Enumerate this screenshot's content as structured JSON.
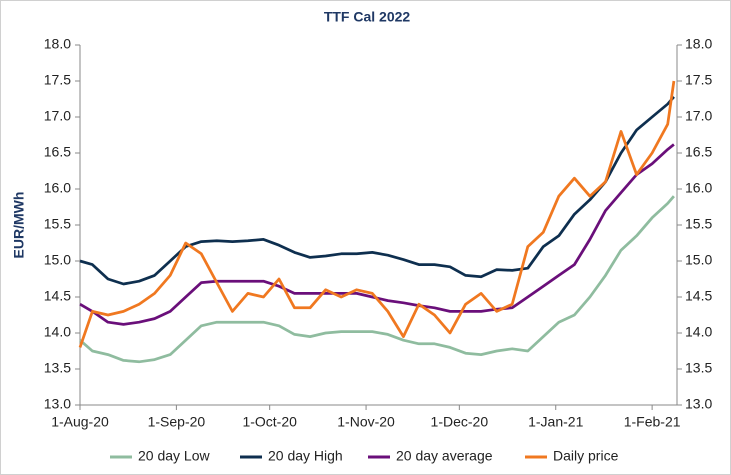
{
  "chart_data": {
    "type": "line",
    "title": "TTF Cal 2022",
    "y_label": "EUR/MWh",
    "x": [
      "2020-08-01",
      "2020-08-05",
      "2020-08-10",
      "2020-08-15",
      "2020-08-20",
      "2020-08-25",
      "2020-08-30",
      "2020-09-04",
      "2020-09-09",
      "2020-09-14",
      "2020-09-19",
      "2020-09-24",
      "2020-09-29",
      "2020-10-04",
      "2020-10-09",
      "2020-10-14",
      "2020-10-19",
      "2020-10-24",
      "2020-10-29",
      "2020-11-03",
      "2020-11-08",
      "2020-11-13",
      "2020-11-18",
      "2020-11-23",
      "2020-11-28",
      "2020-12-03",
      "2020-12-08",
      "2020-12-13",
      "2020-12-18",
      "2020-12-23",
      "2020-12-28",
      "2021-01-02",
      "2021-01-07",
      "2021-01-12",
      "2021-01-17",
      "2021-01-22",
      "2021-01-27",
      "2021-02-01",
      "2021-02-06",
      "2021-02-08"
    ],
    "series": [
      {
        "name": "20 day Low",
        "color": "#8fbc9f",
        "values": [
          13.9,
          13.75,
          13.7,
          13.62,
          13.6,
          13.63,
          13.7,
          13.9,
          14.1,
          14.15,
          14.15,
          14.15,
          14.15,
          14.1,
          13.98,
          13.95,
          14.0,
          14.02,
          14.02,
          14.02,
          13.98,
          13.9,
          13.85,
          13.85,
          13.8,
          13.72,
          13.7,
          13.75,
          13.78,
          13.75,
          13.95,
          14.15,
          14.25,
          14.5,
          14.8,
          15.15,
          15.35,
          15.6,
          15.8,
          15.9
        ]
      },
      {
        "name": "20 day High",
        "color": "#0e2f4f",
        "values": [
          15.0,
          14.95,
          14.75,
          14.68,
          14.72,
          14.8,
          15.0,
          15.2,
          15.27,
          15.28,
          15.27,
          15.28,
          15.3,
          15.22,
          15.12,
          15.05,
          15.07,
          15.1,
          15.1,
          15.12,
          15.08,
          15.02,
          14.95,
          14.95,
          14.92,
          14.8,
          14.78,
          14.88,
          14.87,
          14.9,
          15.2,
          15.35,
          15.65,
          15.85,
          16.1,
          16.5,
          16.82,
          17.0,
          17.18,
          17.28
        ]
      },
      {
        "name": "20 day average",
        "color": "#6a0f7a",
        "values": [
          14.4,
          14.3,
          14.15,
          14.12,
          14.15,
          14.2,
          14.3,
          14.5,
          14.7,
          14.72,
          14.72,
          14.72,
          14.72,
          14.65,
          14.55,
          14.55,
          14.55,
          14.55,
          14.55,
          14.5,
          14.45,
          14.42,
          14.38,
          14.35,
          14.3,
          14.3,
          14.3,
          14.33,
          14.35,
          14.5,
          14.65,
          14.8,
          14.95,
          15.3,
          15.7,
          15.95,
          16.2,
          16.35,
          16.55,
          16.62
        ]
      },
      {
        "name": "Daily price",
        "color": "#f07820",
        "values": [
          13.8,
          14.3,
          14.25,
          14.3,
          14.4,
          14.55,
          14.8,
          15.25,
          15.1,
          14.7,
          14.3,
          14.55,
          14.5,
          14.75,
          14.35,
          14.35,
          14.6,
          14.5,
          14.6,
          14.55,
          14.3,
          13.95,
          14.4,
          14.25,
          14.0,
          14.4,
          14.55,
          14.3,
          14.4,
          15.2,
          15.4,
          15.9,
          16.15,
          15.9,
          16.1,
          16.8,
          16.2,
          16.5,
          16.9,
          17.5
        ]
      }
    ],
    "xlim": [
      "2020-08-01",
      "2021-02-09"
    ],
    "xticks": [
      {
        "value": "2020-08-01",
        "label": "1-Aug-20"
      },
      {
        "value": "2020-09-01",
        "label": "1-Sep-20"
      },
      {
        "value": "2020-10-01",
        "label": "1-Oct-20"
      },
      {
        "value": "2020-11-01",
        "label": "1-Nov-20"
      },
      {
        "value": "2020-12-01",
        "label": "1-Dec-20"
      },
      {
        "value": "2021-01-01",
        "label": "1-Jan-21"
      },
      {
        "value": "2021-02-01",
        "label": "1-Feb-21"
      }
    ],
    "ylim": [
      13,
      18
    ],
    "yticks": [
      {
        "value": 13,
        "label": "13.0"
      },
      {
        "value": 13.5,
        "label": "13.5"
      },
      {
        "value": 14,
        "label": "14.0"
      },
      {
        "value": 14.5,
        "label": "14.5"
      },
      {
        "value": 15,
        "label": "15.0"
      },
      {
        "value": 15.5,
        "label": "15.5"
      },
      {
        "value": 16,
        "label": "16.0"
      },
      {
        "value": 16.5,
        "label": "16.5"
      },
      {
        "value": 17,
        "label": "17.0"
      },
      {
        "value": 17.5,
        "label": "17.5"
      },
      {
        "value": 18,
        "label": "18.0"
      }
    ],
    "y2lim": [
      13,
      18
    ],
    "y2ticks": [
      {
        "value": 13,
        "label": "13.0"
      },
      {
        "value": 13.5,
        "label": "13.5"
      },
      {
        "value": 14,
        "label": "14.0"
      },
      {
        "value": 14.5,
        "label": "14.5"
      },
      {
        "value": 15,
        "label": "15.0"
      },
      {
        "value": 15.5,
        "label": "15.5"
      },
      {
        "value": 16,
        "label": "16.0"
      },
      {
        "value": 16.5,
        "label": "16.5"
      },
      {
        "value": 17,
        "label": "17.0"
      },
      {
        "value": 17.5,
        "label": "17.5"
      },
      {
        "value": 18,
        "label": "18.0"
      }
    ],
    "legend": "bottom",
    "grid": false
  }
}
